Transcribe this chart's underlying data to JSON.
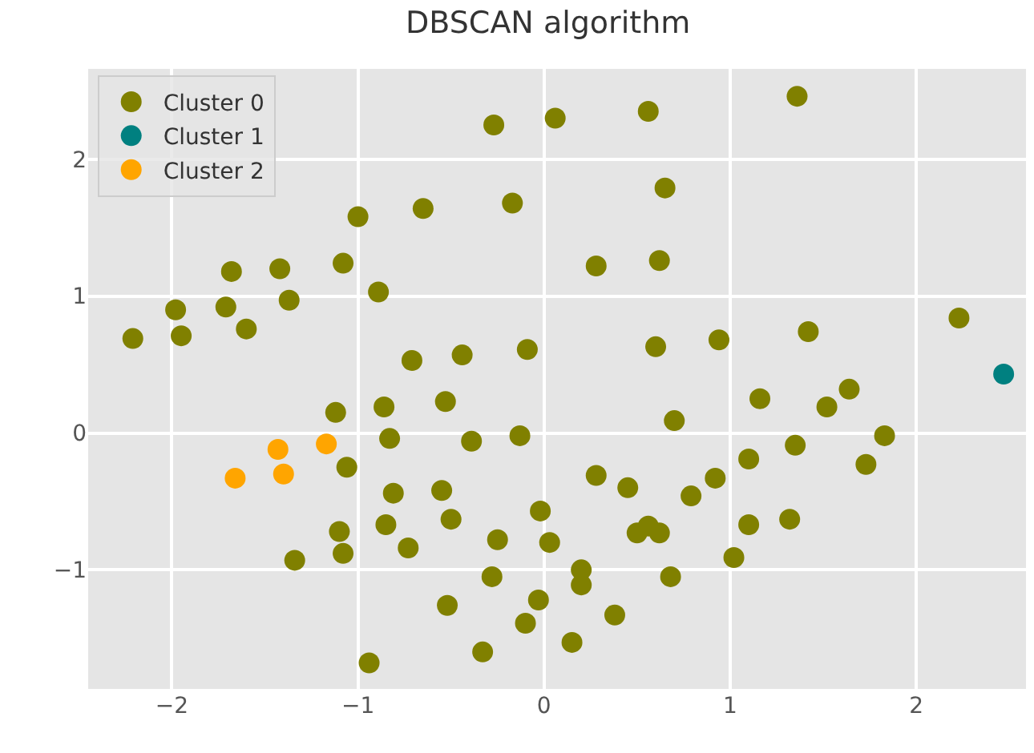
{
  "chart_data": {
    "type": "scatter",
    "title": "DBSCAN algorithm",
    "xlim": [
      -2.45,
      2.59
    ],
    "ylim": [
      -1.87,
      2.66
    ],
    "xticks": [
      -2,
      -1,
      0,
      1,
      2
    ],
    "yticks": [
      -1,
      0,
      1,
      2
    ],
    "grid": true,
    "legend": "top left",
    "marker": "circle",
    "series": [
      {
        "name": "Cluster 0",
        "color": "#808000",
        "x": [
          -0.27,
          0.06,
          -1.0,
          -0.65,
          -0.17,
          -1.68,
          -1.42,
          -1.08,
          -0.89,
          -1.98,
          -1.71,
          -1.37,
          -2.21,
          -1.95,
          -1.6,
          -0.71,
          -0.44,
          -0.09,
          0.56,
          1.36,
          0.65,
          0.28,
          0.62,
          0.6,
          0.94,
          1.42,
          2.23,
          -1.12,
          -0.86,
          -0.53,
          -0.83,
          -0.39,
          -0.13,
          -1.06,
          -0.81,
          -0.55,
          -0.02,
          -0.85,
          -0.5,
          -1.1,
          -0.73,
          -0.25,
          0.03,
          -1.34,
          -1.08,
          -0.28,
          -0.52,
          -0.03,
          -0.1,
          -0.33,
          -0.94,
          0.7,
          1.16,
          1.52,
          1.64,
          1.83,
          1.35,
          1.1,
          1.73,
          0.28,
          0.45,
          0.92,
          0.79,
          0.56,
          0.5,
          0.62,
          1.1,
          1.32,
          1.02,
          0.2,
          0.2,
          0.68,
          0.38,
          0.15
        ],
        "values": [
          2.25,
          2.3,
          1.58,
          1.64,
          1.68,
          1.18,
          1.2,
          1.24,
          1.03,
          0.9,
          0.92,
          0.97,
          0.69,
          0.71,
          0.76,
          0.53,
          0.57,
          0.61,
          2.35,
          2.46,
          1.79,
          1.22,
          1.26,
          0.63,
          0.68,
          0.74,
          0.84,
          0.15,
          0.19,
          0.23,
          -0.04,
          -0.06,
          -0.02,
          -0.25,
          -0.44,
          -0.42,
          -0.57,
          -0.67,
          -0.63,
          -0.72,
          -0.84,
          -0.78,
          -0.8,
          -0.93,
          -0.88,
          -1.05,
          -1.26,
          -1.22,
          -1.39,
          -1.6,
          -1.68,
          0.09,
          0.25,
          0.19,
          0.32,
          -0.02,
          -0.09,
          -0.19,
          -0.23,
          -0.31,
          -0.4,
          -0.33,
          -0.46,
          -0.68,
          -0.73,
          -0.73,
          -0.67,
          -0.63,
          -0.91,
          -1.0,
          -1.11,
          -1.05,
          -1.33,
          -1.53
        ]
      },
      {
        "name": "Cluster 1",
        "color": "#008080",
        "x": [
          2.47
        ],
        "values": [
          0.43
        ]
      },
      {
        "name": "Cluster 2",
        "color": "#ffa500",
        "x": [
          -1.43,
          -1.17,
          -1.4,
          -1.66
        ],
        "values": [
          -0.12,
          -0.08,
          -0.3,
          -0.33
        ]
      }
    ]
  }
}
